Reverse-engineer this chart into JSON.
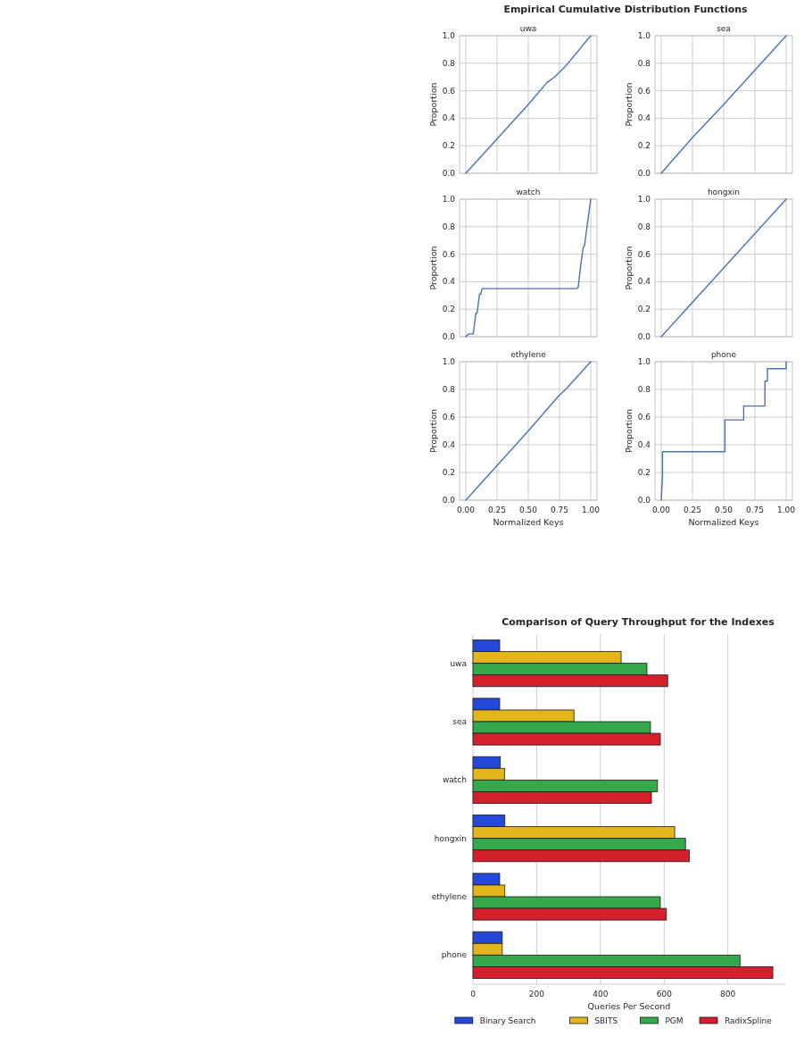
{
  "chart_data": [
    {
      "type": "line",
      "title": "Empirical Cumulative Distribution Functions",
      "subtitle": "uwa",
      "ylabel": "Proportion",
      "xlim": [
        -0.05,
        1.05
      ],
      "ylim": [
        0,
        1
      ],
      "xticks": [
        {
          "value": 0,
          "label": null
        },
        {
          "value": 0.25,
          "label": null
        },
        {
          "value": 0.5,
          "label": null
        },
        {
          "value": 0.75,
          "label": null
        },
        {
          "value": 1,
          "label": null
        }
      ],
      "yticks": [
        {
          "value": 0,
          "label": "0.0"
        },
        {
          "value": 0.2,
          "label": "0.2"
        },
        {
          "value": 0.4,
          "label": "0.4"
        },
        {
          "value": 0.6,
          "label": "0.6"
        },
        {
          "value": 0.8,
          "label": "0.8"
        },
        {
          "value": 1,
          "label": "1.0"
        }
      ],
      "grid": true,
      "tick_labels": "y",
      "series": [
        {
          "color": "#4c72b0",
          "x": [
            0,
            0.25,
            0.5,
            0.65,
            0.71,
            0.8,
            1
          ],
          "values": [
            0,
            0.25,
            0.5,
            0.66,
            0.7,
            0.78,
            1
          ]
        }
      ]
    },
    {
      "type": "line",
      "subtitle": "sea",
      "ylabel": "Proportion",
      "xlim": [
        -0.05,
        1.05
      ],
      "ylim": [
        0,
        1
      ],
      "xticks": [
        {
          "value": 0,
          "label": null
        },
        {
          "value": 0.25,
          "label": null
        },
        {
          "value": 0.5,
          "label": null
        },
        {
          "value": 0.75,
          "label": null
        },
        {
          "value": 1,
          "label": null
        }
      ],
      "yticks": [
        {
          "value": 0,
          "label": "0.0"
        },
        {
          "value": 0.2,
          "label": "0.2"
        },
        {
          "value": 0.4,
          "label": "0.4"
        },
        {
          "value": 0.6,
          "label": "0.6"
        },
        {
          "value": 0.8,
          "label": "0.8"
        },
        {
          "value": 1,
          "label": "1.0"
        }
      ],
      "grid": true,
      "tick_labels": "y",
      "series": [
        {
          "color": "#4c72b0",
          "x": [
            0,
            0.25,
            0.5,
            0.75,
            1
          ],
          "values": [
            0,
            0.26,
            0.5,
            0.75,
            1
          ]
        }
      ]
    },
    {
      "type": "line",
      "subtitle": "watch",
      "ylabel": "Proportion",
      "xlim": [
        -0.05,
        1.05
      ],
      "ylim": [
        0,
        1
      ],
      "xticks": [
        {
          "value": 0,
          "label": null
        },
        {
          "value": 0.25,
          "label": null
        },
        {
          "value": 0.5,
          "label": null
        },
        {
          "value": 0.75,
          "label": null
        },
        {
          "value": 1,
          "label": null
        }
      ],
      "yticks": [
        {
          "value": 0,
          "label": "0.0"
        },
        {
          "value": 0.2,
          "label": "0.2"
        },
        {
          "value": 0.4,
          "label": "0.4"
        },
        {
          "value": 0.6,
          "label": "0.6"
        },
        {
          "value": 0.8,
          "label": "0.8"
        },
        {
          "value": 1,
          "label": "1.0"
        }
      ],
      "grid": true,
      "tick_labels": "y",
      "series": [
        {
          "color": "#4c72b0",
          "x": [
            0,
            0.02,
            0.06,
            0.08,
            0.09,
            0.11,
            0.12,
            0.13,
            0.89,
            0.9,
            0.92,
            0.94,
            0.95,
            0.97,
            1
          ],
          "values": [
            0,
            0.02,
            0.02,
            0.17,
            0.17,
            0.31,
            0.31,
            0.35,
            0.35,
            0.36,
            0.52,
            0.65,
            0.66,
            0.8,
            1
          ]
        }
      ]
    },
    {
      "type": "line",
      "subtitle": "hongxin",
      "ylabel": "Proportion",
      "xlim": [
        -0.05,
        1.05
      ],
      "ylim": [
        0,
        1
      ],
      "xticks": [
        {
          "value": 0,
          "label": null
        },
        {
          "value": 0.25,
          "label": null
        },
        {
          "value": 0.5,
          "label": null
        },
        {
          "value": 0.75,
          "label": null
        },
        {
          "value": 1,
          "label": null
        }
      ],
      "yticks": [
        {
          "value": 0,
          "label": "0.0"
        },
        {
          "value": 0.2,
          "label": "0.2"
        },
        {
          "value": 0.4,
          "label": "0.4"
        },
        {
          "value": 0.6,
          "label": "0.6"
        },
        {
          "value": 0.8,
          "label": "0.8"
        },
        {
          "value": 1,
          "label": "1.0"
        }
      ],
      "grid": true,
      "tick_labels": "y",
      "series": [
        {
          "color": "#4c72b0",
          "x": [
            0,
            0.5,
            1
          ],
          "values": [
            0,
            0.5,
            1
          ]
        }
      ]
    },
    {
      "type": "line",
      "subtitle": "ethylene",
      "xlabel": "Normalized Keys",
      "ylabel": "Proportion",
      "xlim": [
        -0.05,
        1.05
      ],
      "ylim": [
        0,
        1
      ],
      "xticks": [
        {
          "value": 0,
          "label": "0.00"
        },
        {
          "value": 0.25,
          "label": "0.25"
        },
        {
          "value": 0.5,
          "label": "0.50"
        },
        {
          "value": 0.75,
          "label": "0.75"
        },
        {
          "value": 1,
          "label": "1.00"
        }
      ],
      "yticks": [
        {
          "value": 0,
          "label": "0.0"
        },
        {
          "value": 0.2,
          "label": "0.2"
        },
        {
          "value": 0.4,
          "label": "0.4"
        },
        {
          "value": 0.6,
          "label": "0.6"
        },
        {
          "value": 0.8,
          "label": "0.8"
        },
        {
          "value": 1,
          "label": "1.0"
        }
      ],
      "grid": true,
      "series": [
        {
          "color": "#4c72b0",
          "x": [
            0,
            0.2,
            0.25,
            0.5,
            0.75,
            0.8,
            1
          ],
          "values": [
            0,
            0.2,
            0.25,
            0.5,
            0.76,
            0.8,
            1
          ]
        }
      ]
    },
    {
      "type": "line",
      "subtitle": "phone",
      "xlabel": "Normalized Keys",
      "ylabel": "Proportion",
      "xlim": [
        -0.05,
        1.05
      ],
      "ylim": [
        0,
        1
      ],
      "xticks": [
        {
          "value": 0,
          "label": "0.00"
        },
        {
          "value": 0.25,
          "label": "0.25"
        },
        {
          "value": 0.5,
          "label": "0.50"
        },
        {
          "value": 0.75,
          "label": "0.75"
        },
        {
          "value": 1,
          "label": "1.00"
        }
      ],
      "yticks": [
        {
          "value": 0,
          "label": "0.0"
        },
        {
          "value": 0.2,
          "label": "0.2"
        },
        {
          "value": 0.4,
          "label": "0.4"
        },
        {
          "value": 0.6,
          "label": "0.6"
        },
        {
          "value": 0.8,
          "label": "0.8"
        },
        {
          "value": 1,
          "label": "1.0"
        }
      ],
      "grid": true,
      "series": [
        {
          "color": "#4c72b0",
          "x": [
            0,
            0.01,
            0.01,
            0.51,
            0.51,
            0.66,
            0.66,
            0.83,
            0.83,
            0.85,
            0.85,
            1,
            1
          ],
          "values": [
            0,
            0.17,
            0.35,
            0.35,
            0.58,
            0.58,
            0.68,
            0.68,
            0.86,
            0.86,
            0.95,
            0.95,
            1
          ]
        }
      ]
    },
    {
      "type": "bar",
      "orientation": "horizontal",
      "title": "Comparison of Query Throughput for the Indexes",
      "xlabel": "Queries Per Second",
      "categories": [
        "uwa",
        "sea",
        "watch",
        "hongxin",
        "ethylene",
        "phone"
      ],
      "xlim": [
        0,
        980
      ],
      "xticks": [
        0,
        200,
        400,
        600,
        800
      ],
      "grid": "x",
      "legend": "bottom",
      "series": [
        {
          "name": "Binary Search",
          "color": "#2448d8",
          "values": [
            84,
            84,
            86,
            100,
            84,
            92
          ]
        },
        {
          "name": "SBITS",
          "color": "#e4b41c",
          "values": [
            465,
            317,
            99,
            633,
            100,
            92
          ]
        },
        {
          "name": "PGM",
          "color": "#34a84a",
          "values": [
            546,
            557,
            579,
            667,
            588,
            838
          ]
        },
        {
          "name": "RadixSpline",
          "color": "#d4202a",
          "values": [
            611,
            588,
            560,
            679,
            607,
            941
          ]
        }
      ]
    }
  ]
}
